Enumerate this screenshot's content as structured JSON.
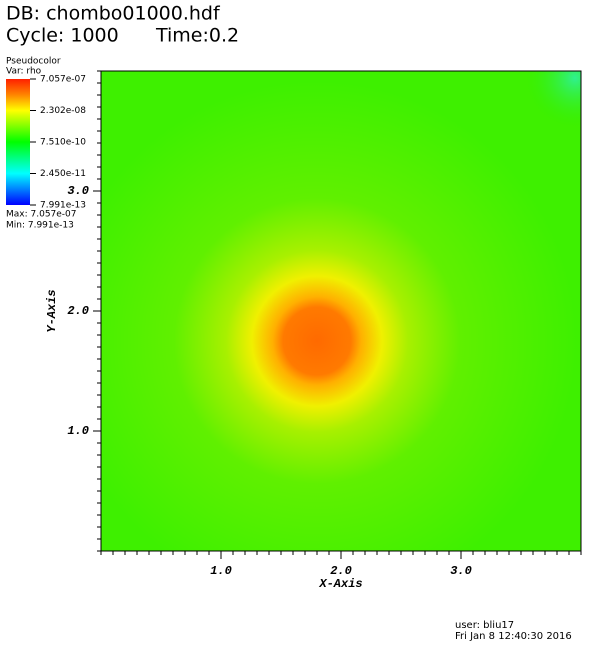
{
  "header": {
    "db": "DB: chombo01000.hdf",
    "cycle": "Cycle: 1000",
    "time": "Time:0.2"
  },
  "legend": {
    "title": "Pseudocolor",
    "var": "Var: rho",
    "scale": "log",
    "clim": [
      7.991e-13,
      7.057e-07
    ],
    "ticks": [
      {
        "value": 7.057e-07,
        "label": "7.057e-07"
      },
      {
        "value": 2.302e-08,
        "label": "2.302e-08"
      },
      {
        "value": 7.51e-10,
        "label": "7.510e-10"
      },
      {
        "value": 2.45e-11,
        "label": "2.450e-11"
      },
      {
        "value": 7.991e-13,
        "label": "7.991e-13"
      }
    ],
    "max": "Max:  7.057e-07",
    "min": "Min:  7.991e-13"
  },
  "chart_data": {
    "type": "pseudocolor",
    "x_label": "X-Axis",
    "y_label": "Y-Axis",
    "xlim": [
      0,
      4
    ],
    "ylim": [
      0,
      4
    ],
    "xticks": [
      {
        "value": 1,
        "label": "1.0"
      },
      {
        "value": 2,
        "label": "2.0"
      },
      {
        "value": 3,
        "label": "3.0"
      }
    ],
    "yticks": [
      {
        "value": 1,
        "label": "1.0"
      },
      {
        "value": 2,
        "label": "2.0"
      },
      {
        "value": 3,
        "label": "3.0"
      }
    ]
  },
  "footer": {
    "user": "user: bliu17",
    "date": "Fri Jan  8 12:40:30 2016"
  }
}
